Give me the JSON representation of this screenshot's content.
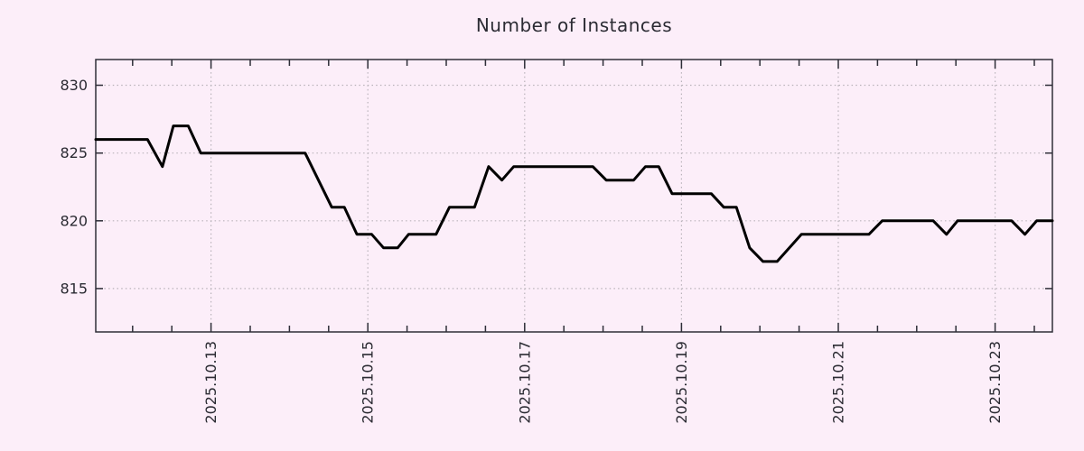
{
  "colors": {
    "background": "#fceef9",
    "plot_border": "#2e2e38",
    "text": "#2b2b33",
    "grid": "#b9b3ba",
    "series_line": "#000000"
  },
  "chart_data": {
    "type": "line",
    "title": "Number of Instances",
    "xlabel": "",
    "ylabel": "",
    "legend": "none",
    "grid_style": "dotted",
    "x": {
      "unit": "date (year 2025, month 10, fractional day)",
      "min_day": 11.53,
      "max_day": 23.73,
      "minor_tick_step_days": 0.5,
      "major_ticks": [
        {
          "day": 13,
          "label": "2025.10.13"
        },
        {
          "day": 15,
          "label": "2025.10.15"
        },
        {
          "day": 17,
          "label": "2025.10.17"
        },
        {
          "day": 19,
          "label": "2025.10.19"
        },
        {
          "day": 21,
          "label": "2025.10.21"
        },
        {
          "day": 23,
          "label": "2025.10.23"
        }
      ]
    },
    "y": {
      "min": 811.8,
      "max": 831.9,
      "ticks": [
        815,
        820,
        825,
        830
      ]
    },
    "series": [
      {
        "name": "Number of Instances",
        "color": "#000000",
        "points_day_value": [
          [
            11.53,
            826
          ],
          [
            12.19,
            826
          ],
          [
            12.38,
            824
          ],
          [
            12.52,
            827
          ],
          [
            12.71,
            827
          ],
          [
            12.87,
            825
          ],
          [
            14.2,
            825
          ],
          [
            14.54,
            821
          ],
          [
            14.7,
            821
          ],
          [
            14.86,
            819
          ],
          [
            15.05,
            819
          ],
          [
            15.2,
            818
          ],
          [
            15.38,
            818
          ],
          [
            15.52,
            819
          ],
          [
            15.87,
            819
          ],
          [
            16.04,
            821
          ],
          [
            16.36,
            821
          ],
          [
            16.54,
            824
          ],
          [
            16.71,
            823
          ],
          [
            16.86,
            824
          ],
          [
            17.87,
            824
          ],
          [
            18.04,
            823
          ],
          [
            18.39,
            823
          ],
          [
            18.54,
            824
          ],
          [
            18.71,
            824
          ],
          [
            18.88,
            822
          ],
          [
            19.38,
            822
          ],
          [
            19.54,
            821
          ],
          [
            19.7,
            821
          ],
          [
            19.87,
            818
          ],
          [
            20.04,
            817
          ],
          [
            20.22,
            817
          ],
          [
            20.53,
            819
          ],
          [
            21.39,
            819
          ],
          [
            21.56,
            820
          ],
          [
            22.21,
            820
          ],
          [
            22.38,
            819
          ],
          [
            22.52,
            820
          ],
          [
            23.21,
            820
          ],
          [
            23.38,
            819
          ],
          [
            23.53,
            820
          ],
          [
            23.73,
            820
          ]
        ]
      }
    ]
  }
}
